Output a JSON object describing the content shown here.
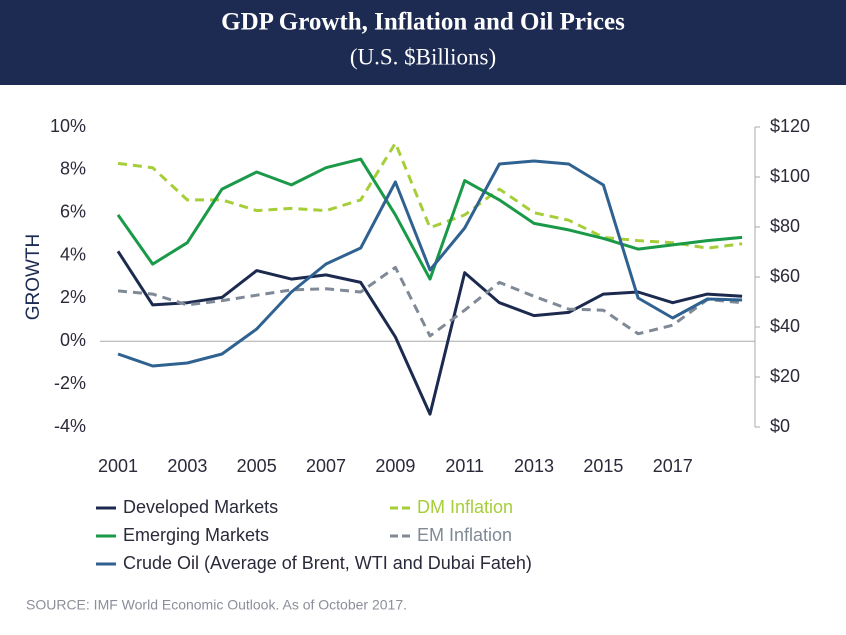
{
  "chart_data": {
    "type": "line",
    "title": "GDP Growth, Inflation and Oil Prices",
    "subtitle": "(U.S. $Billions)",
    "y_label": "GROWTH",
    "source": "SOURCE: IMF World Economic Outlook. As of October 2017.",
    "categories": [
      "2001",
      null,
      "2003",
      null,
      "2005",
      null,
      "2007",
      null,
      "2009",
      null,
      "2011",
      null,
      "2013",
      null,
      "2015",
      null,
      "2017",
      null,
      null
    ],
    "ylim": [
      -4,
      10
    ],
    "yticks": [
      {
        "value": 10,
        "label": "10%"
      },
      {
        "value": 8,
        "label": "8%"
      },
      {
        "value": 6,
        "label": "6%"
      },
      {
        "value": 4,
        "label": "4%"
      },
      {
        "value": 2,
        "label": "2%"
      },
      {
        "value": 0,
        "label": "0%"
      },
      {
        "value": -2,
        "label": "-2%"
      },
      {
        "value": -4,
        "label": "-4%"
      }
    ],
    "y2lim": [
      0,
      120
    ],
    "y2ticks": [
      {
        "value": 120,
        "label": "$120"
      },
      {
        "value": 100,
        "label": "$100"
      },
      {
        "value": 80,
        "label": "$80"
      },
      {
        "value": 60,
        "label": "$60"
      },
      {
        "value": 40,
        "label": "$40"
      },
      {
        "value": 20,
        "label": "$20"
      },
      {
        "value": 0,
        "label": "$0"
      }
    ],
    "series": [
      {
        "name": "Developed Markets",
        "color": "#1b2a4e",
        "dashed": false,
        "values": [
          4.2,
          1.7,
          1.8,
          2.05,
          3.3,
          2.9,
          3.1,
          2.75,
          0.2,
          -3.4,
          3.2,
          1.8,
          1.2,
          1.35,
          2.2,
          2.3,
          1.8,
          2.2,
          2.1
        ]
      },
      {
        "name": "DM Inflation",
        "color": "#a6ce39",
        "dashed": true,
        "values": [
          8.3,
          8.1,
          6.6,
          6.6,
          6.1,
          6.2,
          6.1,
          6.6,
          9.25,
          5.3,
          5.9,
          7.1,
          6.0,
          5.65,
          4.85,
          4.7,
          4.6,
          4.35,
          4.55
        ]
      },
      {
        "name": "Emerging Markets",
        "color": "#1a9a48",
        "dashed": false,
        "values": [
          5.9,
          3.6,
          4.6,
          7.1,
          7.9,
          7.3,
          8.1,
          8.5,
          5.9,
          2.9,
          7.5,
          6.6,
          5.5,
          5.2,
          4.8,
          4.3,
          4.5,
          4.7,
          4.85
        ]
      },
      {
        "name": "EM Inflation",
        "color": "#7f8a96",
        "dashed": true,
        "values": [
          2.35,
          2.2,
          1.7,
          1.9,
          2.15,
          2.4,
          2.45,
          2.3,
          3.45,
          0.25,
          1.45,
          2.75,
          2.1,
          1.5,
          1.45,
          0.35,
          0.75,
          1.95,
          1.8
        ]
      },
      {
        "name": "Crude Oil (Average of Brent, WTI and Dubai Fateh)",
        "color": "#2f6290",
        "dashed": false,
        "axis": "y2",
        "values": [
          29.2,
          24.4,
          25.6,
          29.2,
          39.2,
          54,
          65.2,
          71.6,
          98,
          62.8,
          79.6,
          105.2,
          106.4,
          105.2,
          96.8,
          51.6,
          43.6,
          51.2,
          50.8
        ]
      }
    ]
  }
}
